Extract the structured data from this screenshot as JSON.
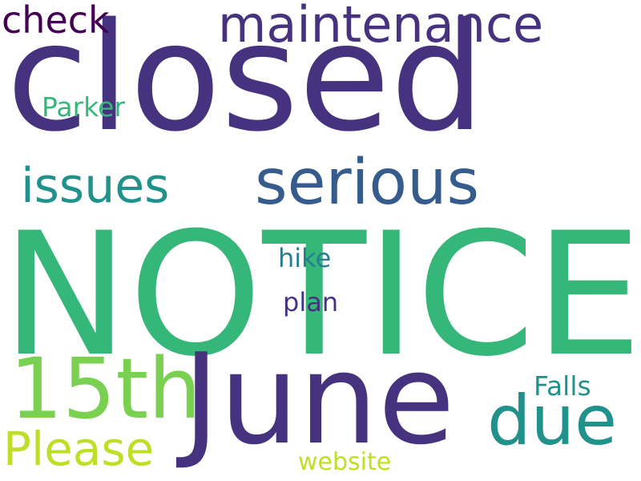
{
  "words": [
    {
      "text": "NOTICE",
      "color": "#35b779"
    },
    {
      "text": "closed",
      "color": "#46327e"
    },
    {
      "text": "June",
      "color": "#46327e"
    },
    {
      "text": "serious",
      "color": "#365c8d"
    },
    {
      "text": "15th",
      "color": "#7ad151"
    },
    {
      "text": "due",
      "color": "#21918c"
    },
    {
      "text": "maintenance",
      "color": "#46327e"
    },
    {
      "text": "issues",
      "color": "#21918c"
    },
    {
      "text": "Please",
      "color": "#bddf26"
    },
    {
      "text": "check",
      "color": "#440154"
    },
    {
      "text": "Parker",
      "color": "#35b779"
    },
    {
      "text": "Falls",
      "color": "#21918c"
    },
    {
      "text": "hike",
      "color": "#277f8e"
    },
    {
      "text": "plan",
      "color": "#46327e"
    },
    {
      "text": "website",
      "color": "#bddf26"
    }
  ]
}
